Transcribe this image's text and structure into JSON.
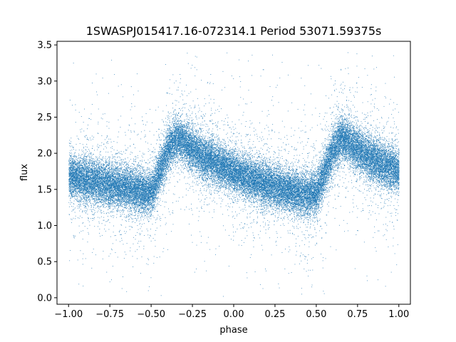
{
  "chart_data": {
    "type": "scatter",
    "title": "1SWASPJ015417.16-072314.1 Period 53071.59375s",
    "xlabel": "phase",
    "ylabel": "flux",
    "xlim": [
      -1.07,
      1.07
    ],
    "ylim": [
      -0.09,
      3.55
    ],
    "x_ticks": [
      -1.0,
      -0.75,
      -0.5,
      -0.25,
      0.0,
      0.25,
      0.5,
      0.75,
      1.0
    ],
    "x_tick_labels": [
      "−1.00",
      "−0.75",
      "−0.50",
      "−0.25",
      "0.00",
      "0.25",
      "0.50",
      "0.75",
      "1.00"
    ],
    "y_ticks": [
      0.0,
      0.5,
      1.0,
      1.5,
      2.0,
      2.5,
      3.0,
      3.5
    ],
    "y_tick_labels": [
      "0.0",
      "0.5",
      "1.0",
      "1.5",
      "2.0",
      "2.5",
      "3.0",
      "3.5"
    ],
    "grid": false,
    "legend": "none",
    "marker_color": "#1f77b4",
    "light_curve_phase": [
      -1.0,
      -0.9,
      -0.8,
      -0.7,
      -0.6,
      -0.55,
      -0.5,
      -0.45,
      -0.4,
      -0.35,
      -0.3,
      -0.25,
      -0.2,
      -0.1,
      0.0,
      0.1,
      0.2,
      0.3,
      0.4,
      0.45,
      0.5,
      0.55,
      0.6,
      0.65,
      0.7,
      0.75,
      0.8,
      0.9,
      1.0
    ],
    "light_curve_flux": [
      1.68,
      1.63,
      1.59,
      1.55,
      1.5,
      1.46,
      1.45,
      1.75,
      2.05,
      2.22,
      2.15,
      2.05,
      1.97,
      1.85,
      1.75,
      1.65,
      1.57,
      1.5,
      1.45,
      1.43,
      1.45,
      1.75,
      2.05,
      2.22,
      2.15,
      2.05,
      1.97,
      1.85,
      1.75
    ],
    "flux_scatter": 0.15,
    "n_points": 40000
  }
}
